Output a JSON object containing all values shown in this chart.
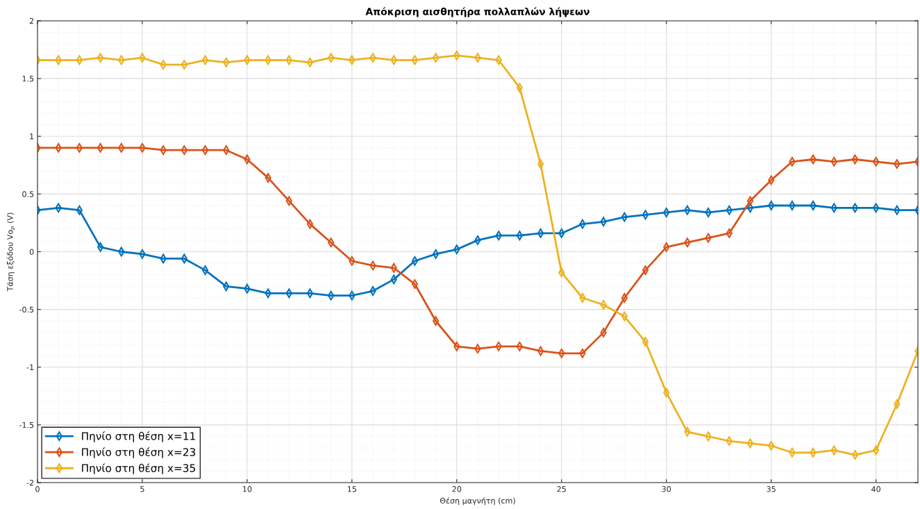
{
  "chart_data": {
    "type": "line",
    "title": "Απόκριση αισθητήρα πολλαπλών λήψεων",
    "xlabel": "Θέση μαγνήτη (cm)",
    "ylabel": "Τάση εξόδου Vo$_{p}$ (V)",
    "x": [
      0,
      1,
      2,
      3,
      4,
      5,
      6,
      7,
      8,
      9,
      10,
      11,
      12,
      13,
      14,
      15,
      16,
      17,
      18,
      19,
      20,
      21,
      22,
      23,
      24,
      25,
      26,
      27,
      28,
      29,
      30,
      31,
      32,
      33,
      34,
      35,
      36,
      37,
      38,
      39,
      40,
      41,
      42
    ],
    "series": [
      {
        "name": "Πηνίο στη θέση x=11",
        "color": "#0072bd",
        "values": [
          0.36,
          0.38,
          0.36,
          0.04,
          0,
          -0.02,
          -0.06,
          -0.06,
          -0.16,
          -0.3,
          -0.32,
          -0.36,
          -0.36,
          -0.36,
          -0.38,
          -0.38,
          -0.34,
          -0.24,
          -0.08,
          -0.02,
          0.02,
          0.1,
          0.14,
          0.14,
          0.16,
          0.16,
          0.24,
          0.26,
          0.3,
          0.32,
          0.34,
          0.36,
          0.34,
          0.36,
          0.38,
          0.4,
          0.4,
          0.4,
          0.38,
          0.38,
          0.38,
          0.36,
          0.36
        ]
      },
      {
        "name": "Πηνίο στη θέση x=23",
        "color": "#d95319",
        "values": [
          0.9,
          0.9,
          0.9,
          0.9,
          0.9,
          0.9,
          0.88,
          0.88,
          0.88,
          0.88,
          0.8,
          0.64,
          0.44,
          0.24,
          0.08,
          -0.08,
          -0.12,
          -0.14,
          -0.28,
          -0.6,
          -0.82,
          -0.84,
          -0.82,
          -0.82,
          -0.86,
          -0.88,
          -0.88,
          -0.7,
          -0.4,
          -0.16,
          0.04,
          0.08,
          0.12,
          0.16,
          0.44,
          0.62,
          0.78,
          0.8,
          0.78,
          0.8,
          0.78,
          0.76,
          0.78
        ]
      },
      {
        "name": "Πηνίο στη θέση x=35",
        "color": "#edb120",
        "values": [
          1.66,
          1.66,
          1.66,
          1.68,
          1.66,
          1.68,
          1.62,
          1.62,
          1.66,
          1.64,
          1.66,
          1.66,
          1.66,
          1.64,
          1.68,
          1.66,
          1.68,
          1.66,
          1.66,
          1.68,
          1.7,
          1.68,
          1.66,
          1.42,
          0.76,
          -0.18,
          -0.4,
          -0.46,
          -0.56,
          -0.78,
          -1.22,
          -1.56,
          -1.6,
          -1.64,
          -1.66,
          -1.68,
          -1.74,
          -1.74,
          -1.72,
          -1.76,
          -1.72,
          -1.32,
          -0.86
        ]
      }
    ],
    "xlim": [
      0,
      42
    ],
    "xticks": [
      0,
      5,
      10,
      15,
      20,
      25,
      30,
      35,
      40
    ],
    "ylim": [
      -2,
      2
    ],
    "yticks": [
      -2,
      -1.5,
      -1,
      -0.5,
      0,
      0.5,
      1,
      1.5,
      2
    ],
    "grid": true,
    "legend": "bottom left",
    "marker": "diamond",
    "line_style": "solid"
  }
}
